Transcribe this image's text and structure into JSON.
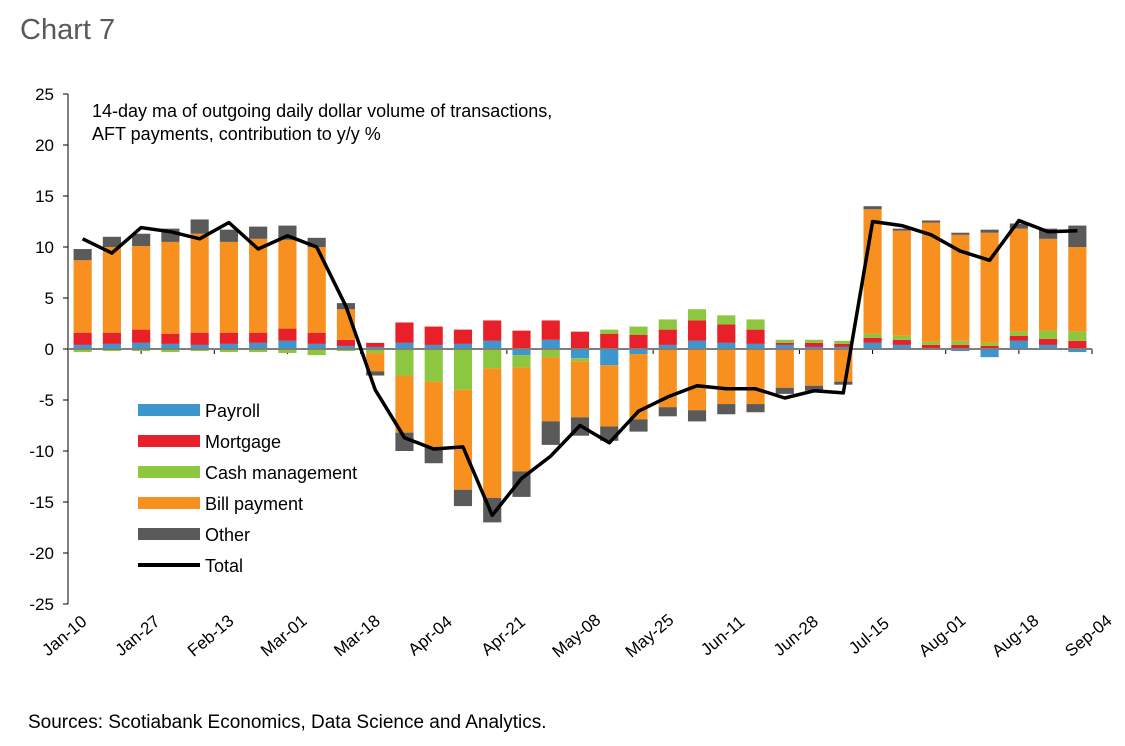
{
  "header": {
    "title": "Chart 7"
  },
  "footer": {
    "sources": "Sources: Scotiabank Economics, Data Science and Analytics."
  },
  "chart_data": {
    "type": "bar",
    "stacked": true,
    "annotation_lines": [
      "14-day ma of outgoing daily dollar volume of transactions,",
      "AFT payments, contribution to y/y %"
    ],
    "ylim": [
      -25,
      25
    ],
    "yticks": [
      25,
      20,
      15,
      10,
      5,
      0,
      -5,
      -10,
      -15,
      -20,
      -25
    ],
    "xtick_labels": [
      "Jan-10",
      "Jan-27",
      "Feb-13",
      "Mar-01",
      "Mar-18",
      "Apr-04",
      "Apr-21",
      "May-08",
      "May-25",
      "Jun-11",
      "Jun-28",
      "Jul-15",
      "Aug-01",
      "Aug-18",
      "Sep-04"
    ],
    "grid": false,
    "legend_placement": "left-center",
    "series": [
      {
        "name": "Payroll",
        "color": "#3d97cf",
        "kind": "bar",
        "values": [
          0.4,
          0.5,
          0.6,
          0.5,
          0.4,
          0.5,
          0.6,
          0.8,
          0.5,
          0.3,
          0.2,
          0.6,
          0.4,
          0.5,
          0.8,
          -0.6,
          0.9,
          -0.9,
          -1.6,
          -0.5,
          0.4,
          0.8,
          0.6,
          0.5,
          0.4,
          0.2,
          0.2,
          0.6,
          0.4,
          0.1,
          -0.2,
          -0.8,
          0.8,
          0.4,
          -0.3
        ]
      },
      {
        "name": "Mortgage",
        "color": "#e8202a",
        "kind": "bar",
        "values": [
          1.2,
          1.1,
          1.3,
          1.0,
          1.2,
          1.1,
          1.0,
          1.2,
          1.1,
          0.6,
          0.4,
          2.0,
          1.8,
          1.4,
          2.0,
          1.8,
          1.9,
          1.7,
          1.5,
          1.4,
          1.5,
          2.0,
          1.8,
          1.4,
          0.2,
          0.4,
          0.3,
          0.5,
          0.5,
          0.3,
          0.4,
          0.3,
          0.5,
          0.6,
          0.8
        ]
      },
      {
        "name": "Cash management",
        "color": "#8dc63f",
        "kind": "bar",
        "values": [
          -0.3,
          -0.2,
          -0.2,
          -0.3,
          -0.2,
          -0.3,
          -0.3,
          -0.4,
          -0.6,
          -0.2,
          -0.4,
          -2.6,
          -3.2,
          -4.0,
          -1.9,
          -1.2,
          -0.8,
          -0.3,
          0.4,
          0.8,
          1.0,
          1.1,
          0.9,
          1.0,
          0.3,
          0.3,
          0.3,
          0.4,
          0.4,
          0.3,
          0.4,
          0.3,
          0.4,
          0.8,
          0.9
        ]
      },
      {
        "name": "Bill payment",
        "color": "#f7901e",
        "kind": "bar",
        "values": [
          7.1,
          8.4,
          8.2,
          9.0,
          9.7,
          8.9,
          9.2,
          8.7,
          8.4,
          3.0,
          -1.8,
          -5.6,
          -6.4,
          -9.8,
          -12.7,
          -10.2,
          -6.3,
          -5.5,
          -6.0,
          -6.4,
          -5.7,
          -6.0,
          -5.4,
          -5.4,
          -3.8,
          -3.6,
          -3.2,
          12.2,
          10.3,
          11.7,
          10.4,
          10.8,
          10.1,
          9.0,
          8.3
        ]
      },
      {
        "name": "Other",
        "color": "#5a5a5a",
        "kind": "bar",
        "values": [
          1.1,
          1.0,
          1.2,
          1.3,
          1.4,
          1.2,
          1.2,
          1.4,
          0.9,
          0.6,
          -0.4,
          -1.8,
          -1.6,
          -1.6,
          -2.4,
          -2.5,
          -2.3,
          -1.8,
          -1.4,
          -1.2,
          -0.9,
          -1.1,
          -1.0,
          -0.8,
          -0.6,
          -0.5,
          -0.3,
          0.3,
          0.2,
          0.2,
          0.2,
          0.3,
          0.5,
          1.0,
          2.1
        ]
      },
      {
        "name": "Total",
        "color": "#000000",
        "kind": "line",
        "values": [
          10.8,
          9.4,
          11.9,
          11.5,
          10.8,
          12.4,
          9.8,
          11.1,
          10.0,
          4.2,
          -4.0,
          -8.7,
          -9.8,
          -9.6,
          -16.3,
          -12.7,
          -10.5,
          -7.5,
          -9.2,
          -6.1,
          -4.7,
          -3.6,
          -3.9,
          -3.9,
          -4.8,
          -4.1,
          -4.3,
          12.5,
          12.1,
          11.2,
          9.6,
          8.7,
          12.6,
          11.5,
          11.6
        ]
      }
    ]
  }
}
